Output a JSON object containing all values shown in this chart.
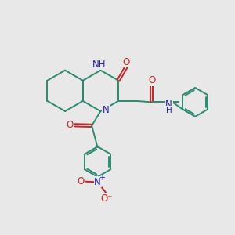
{
  "bg_color": "#e8e8e8",
  "bond_color": "#2d8a6e",
  "N_color": "#2222bb",
  "O_color": "#cc2222",
  "font_size": 8.5,
  "line_width": 1.4,
  "xlim": [
    0,
    10
  ],
  "ylim": [
    0,
    10
  ]
}
